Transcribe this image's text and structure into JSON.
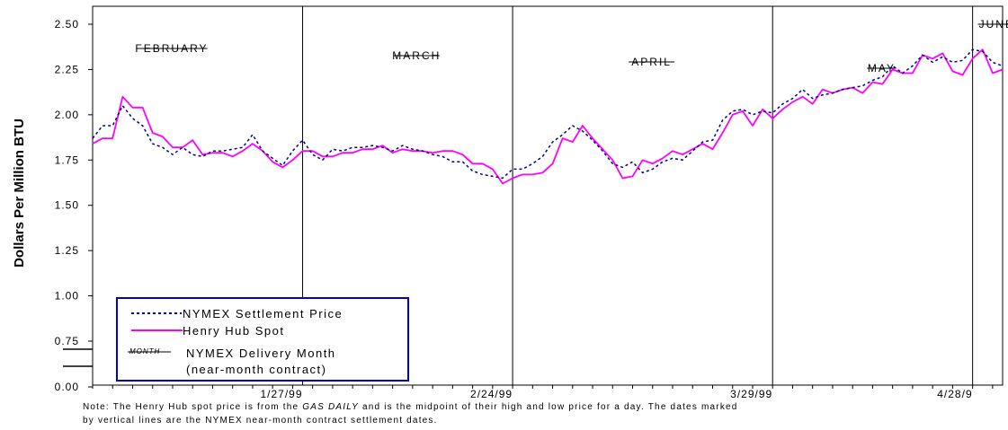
{
  "chart_data": {
    "type": "line",
    "ylabel": "Dollars Per Million BTU",
    "xlabel": "",
    "ylim": [
      0.0,
      2.5
    ],
    "yticks": [
      "0.00",
      "0.75",
      "1.00",
      "1.25",
      "1.50",
      "1.75",
      "2.00",
      "2.25",
      "2.50"
    ],
    "y_axis_break": true,
    "x_tick_labels": [
      "1/27/99",
      "2/24/99",
      "3/29/99",
      "4/28/9"
    ],
    "vertical_lines_at_ticks": true,
    "month_labels": [
      "FEBRUARY",
      "MARCH",
      "APRIL",
      "MAY",
      "JUNE"
    ],
    "legend": {
      "placement": "bottom-left",
      "entries": [
        {
          "label": "NYMEX Settlement Price",
          "style": "dotted",
          "color": "#00008B"
        },
        {
          "label": "Henry Hub Spot",
          "style": "solid",
          "color": "#FF00FF"
        },
        {
          "sample": "MONTH",
          "label": "NYMEX Delivery Month",
          "label2": "(near-month contract)",
          "style": "struck-text"
        }
      ]
    },
    "series": [
      {
        "name": "Henry Hub Spot",
        "color": "#FF00FF",
        "values": [
          1.84,
          1.87,
          1.87,
          2.1,
          2.04,
          2.04,
          1.9,
          1.88,
          1.82,
          1.82,
          1.86,
          1.78,
          1.79,
          1.79,
          1.77,
          1.8,
          1.84,
          1.8,
          1.74,
          1.71,
          1.75,
          1.8,
          1.8,
          1.77,
          1.77,
          1.79,
          1.79,
          1.81,
          1.81,
          1.83,
          1.79,
          1.81,
          1.8,
          1.8,
          1.79,
          1.8,
          1.8,
          1.78,
          1.73,
          1.73,
          1.7,
          1.62,
          1.65,
          1.67,
          1.67,
          1.68,
          1.73,
          1.87,
          1.85,
          1.94,
          1.87,
          1.81,
          1.75,
          1.65,
          1.66,
          1.75,
          1.73,
          1.76,
          1.8,
          1.78,
          1.81,
          1.84,
          1.81,
          1.9,
          2.0,
          2.02,
          1.94,
          2.03,
          1.98,
          2.03,
          2.07,
          2.1,
          2.06,
          2.14,
          2.12,
          2.14,
          2.15,
          2.12,
          2.18,
          2.17,
          2.25,
          2.23,
          2.23,
          2.33,
          2.31,
          2.34,
          2.24,
          2.22,
          2.31,
          2.36,
          2.23,
          2.25
        ]
      },
      {
        "name": "NYMEX Settlement Price",
        "color": "#00008B",
        "values": [
          1.87,
          1.94,
          1.94,
          2.05,
          1.98,
          1.94,
          1.84,
          1.82,
          1.78,
          1.82,
          1.78,
          1.77,
          1.8,
          1.8,
          1.81,
          1.82,
          1.89,
          1.8,
          1.76,
          1.72,
          1.8,
          1.86,
          1.78,
          1.75,
          1.81,
          1.8,
          1.82,
          1.82,
          1.83,
          1.82,
          1.8,
          1.83,
          1.81,
          1.8,
          1.78,
          1.77,
          1.74,
          1.74,
          1.69,
          1.67,
          1.66,
          1.65,
          1.7,
          1.7,
          1.73,
          1.77,
          1.85,
          1.89,
          1.94,
          1.91,
          1.86,
          1.8,
          1.73,
          1.71,
          1.74,
          1.68,
          1.7,
          1.74,
          1.76,
          1.75,
          1.8,
          1.85,
          1.86,
          1.97,
          2.02,
          2.03,
          2.0,
          2.02,
          2.01,
          2.06,
          2.09,
          2.14,
          2.09,
          2.11,
          2.12,
          2.14,
          2.15,
          2.16,
          2.19,
          2.21,
          2.27,
          2.23,
          2.27,
          2.33,
          2.29,
          2.32,
          2.29,
          2.3,
          2.36,
          2.35,
          2.29,
          2.27
        ]
      }
    ],
    "vertical_line_indices": [
      21,
      42,
      68,
      88
    ],
    "note_line1": "Note: The Henry Hub spot price is from the ",
    "note_italic": "GAS DAILY",
    "note_line1_rest": " and is the midpoint of their high and low price for a day. The dates marked",
    "note_line2": "by vertical lines are the NYMEX near-month contract settlement dates."
  }
}
